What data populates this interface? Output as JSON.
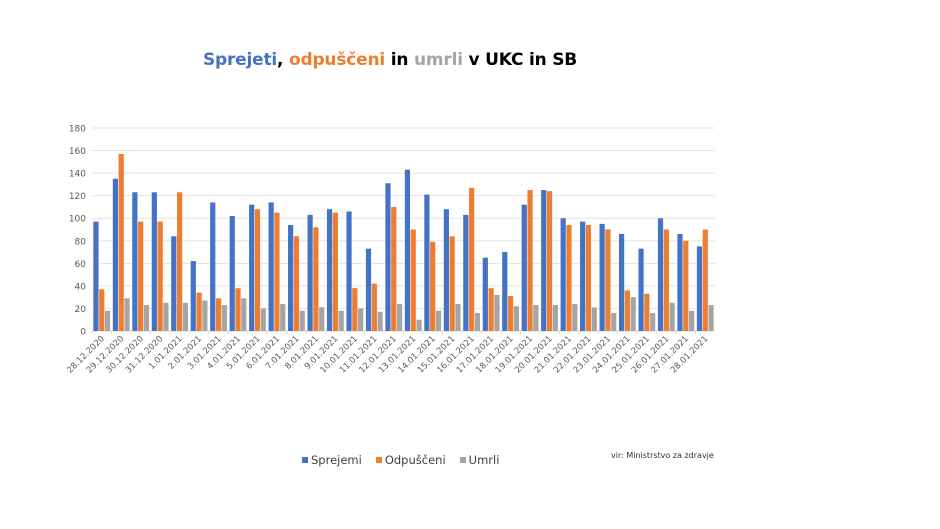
{
  "title": {
    "parts": [
      {
        "text": "Sprejeti",
        "color": "#4472c4"
      },
      {
        "text": ", ",
        "color": "#000000"
      },
      {
        "text": "odpuščeni",
        "color": "#ed7d31"
      },
      {
        "text": " in ",
        "color": "#000000"
      },
      {
        "text": "umrli",
        "color": "#a5a5a5"
      },
      {
        "text": " v UKC in SB",
        "color": "#000000"
      }
    ]
  },
  "legend": {
    "items": [
      {
        "label": "Sprejemi",
        "color": "#4472c4"
      },
      {
        "label": "Odpuščeni",
        "color": "#ed7d31"
      },
      {
        "label": "Umrli",
        "color": "#a5a5a5"
      }
    ]
  },
  "source": "vir: Ministrstvo za zdravje",
  "chart_data": {
    "type": "bar",
    "title": "Sprejeti, odpuščeni in umrli v UKC in SB",
    "xlabel": "",
    "ylabel": "",
    "ylim": [
      0,
      180
    ],
    "yticks": [
      0,
      20,
      40,
      60,
      80,
      100,
      120,
      140,
      160,
      180
    ],
    "grid": true,
    "legend_position": "bottom",
    "categories": [
      "28.12.2020",
      "29.12.2020",
      "30.12.2020",
      "31.12.2020",
      "1.01.2021",
      "2.01.2021",
      "3.01.2021",
      "4.01.2021",
      "5.01.2021",
      "6.01.2021",
      "7.01.2021",
      "8.01.2021",
      "9.01.2021",
      "10.01.2021",
      "11.01.2021",
      "12.01.2021",
      "13.01.2021",
      "14.01.2021",
      "15.01.2021",
      "16.01.2021",
      "17.01.2021",
      "18.01.2021",
      "19.01.2021",
      "20.01.2021",
      "21.01.2021",
      "22.01.2021",
      "23.01.2021",
      "24.01.2021",
      "25.01.2021",
      "26.01.2021",
      "27.01.2021",
      "28.01.2021"
    ],
    "series": [
      {
        "name": "Sprejemi",
        "color": "#4472c4",
        "values": [
          97,
          135,
          123,
          123,
          84,
          62,
          114,
          102,
          112,
          114,
          94,
          103,
          108,
          106,
          73,
          131,
          143,
          121,
          108,
          103,
          65,
          70,
          112,
          125,
          100,
          97,
          95,
          86,
          73,
          100,
          86,
          75
        ]
      },
      {
        "name": "Odpuščeni",
        "color": "#ed7d31",
        "values": [
          37,
          157,
          97,
          97,
          123,
          34,
          29,
          38,
          108,
          105,
          84,
          92,
          105,
          38,
          42,
          110,
          90,
          79,
          84,
          127,
          38,
          31,
          125,
          124,
          94,
          94,
          90,
          36,
          33,
          90,
          80,
          90
        ]
      },
      {
        "name": "Umrli",
        "color": "#a5a5a5",
        "values": [
          18,
          29,
          23,
          25,
          25,
          27,
          23,
          29,
          20,
          24,
          18,
          21,
          18,
          20,
          17,
          24,
          10,
          18,
          24,
          16,
          32,
          22,
          23,
          23,
          24,
          21,
          16,
          30,
          16,
          25,
          18,
          23
        ]
      }
    ]
  }
}
